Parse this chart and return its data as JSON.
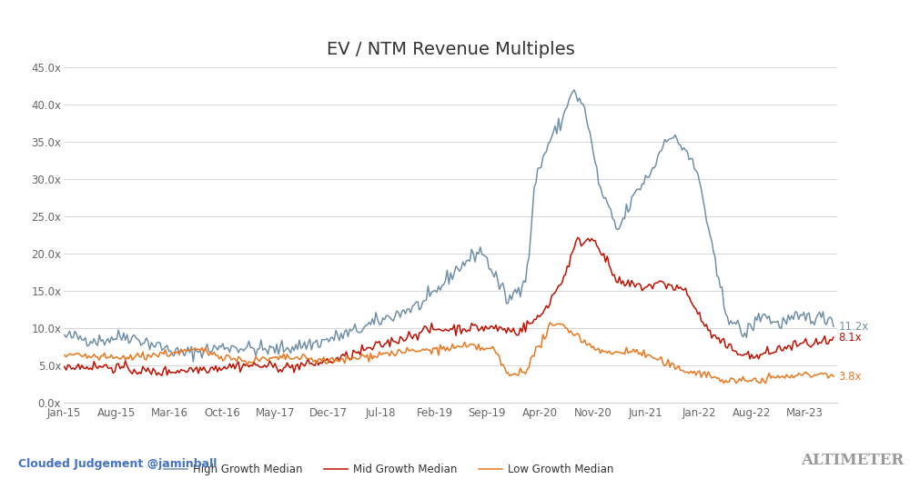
{
  "title": "EV / NTM Revenue Multiples",
  "x_tick_labels": [
    "Jan-15",
    "Aug-15",
    "Mar-16",
    "Oct-16",
    "May-17",
    "Dec-17",
    "Jul-18",
    "Feb-19",
    "Sep-19",
    "Apr-20",
    "Nov-20",
    "Jun-21",
    "Jan-22",
    "Aug-22",
    "Mar-23"
  ],
  "high_color": "#7090a8",
  "mid_color": "#c01000",
  "low_color": "#e87820",
  "high_label": "High Growth Median",
  "mid_label": "Mid Growth Median",
  "low_label": "Low Growth Median",
  "high_end": "11.2x",
  "mid_end": "8.1x",
  "low_end": "3.8x",
  "high_end_color": "#7090a8",
  "mid_end_color": "#c01000",
  "low_end_color": "#e87820",
  "ylim": [
    0,
    45
  ],
  "yticks": [
    0,
    5,
    10,
    15,
    20,
    25,
    30,
    35,
    40,
    45
  ],
  "ytick_labels": [
    "0.0x",
    "5.0x",
    "10.0x",
    "15.0x",
    "20.0x",
    "25.0x",
    "30.0x",
    "35.0x",
    "40.0x",
    "45.0x"
  ],
  "tick_color": "#666666",
  "bg_color": "#ffffff",
  "outer_bg": "#f0f0f0",
  "grid_color": "#d0d0d0",
  "credit_text": "Clouded Judgement @jaminball",
  "credit_color": "#4472c4",
  "watermark_text": "ALTIMETER",
  "watermark_color": "#999999",
  "linewidth": 1.1,
  "title_fontsize": 14,
  "tick_fontsize": 8.5
}
